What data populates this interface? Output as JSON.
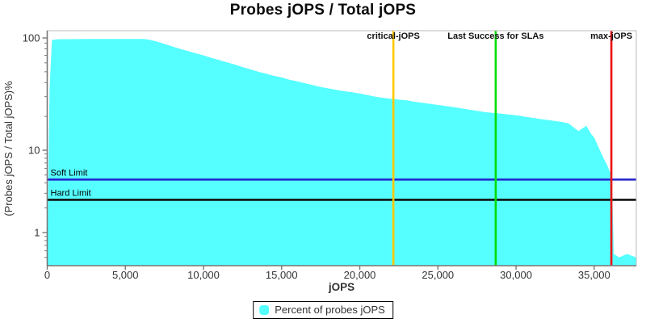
{
  "chart": {
    "title": "Probes jOPS / Total jOPS",
    "xlabel": "jOPS",
    "ylabel": "(Probes jOPS / Total jOPS)%",
    "legend": {
      "label": "Percent of probes jOPS",
      "swatch_color": "#55FFFF"
    }
  },
  "chart_data": {
    "type": "area",
    "title": "Probes jOPS / Total jOPS",
    "xlabel": "jOPS",
    "ylabel": "(Probes jOPS / Total jOPS)%",
    "series_name": "Percent of probes jOPS",
    "area_color": "#55FFFF",
    "x_axis": {
      "min": 0,
      "max": 37700,
      "major_ticks": [
        0,
        5000,
        10000,
        15000,
        20000,
        25000,
        30000,
        35000
      ]
    },
    "y_axis": {
      "scale": "log",
      "min": 0.42,
      "max": 116,
      "major_ticks": [
        100,
        10,
        1
      ],
      "minor_ticks": [
        90,
        80,
        70,
        60,
        50,
        40,
        30,
        20,
        9,
        8,
        7,
        6,
        5,
        4,
        3,
        2,
        0.9,
        0.8,
        0.7,
        0.6,
        0.5
      ]
    },
    "points": [
      [
        0,
        0.45
      ],
      [
        150,
        35
      ],
      [
        300,
        96
      ],
      [
        700,
        97.5
      ],
      [
        1500,
        97.5
      ],
      [
        2500,
        97.8
      ],
      [
        4000,
        98
      ],
      [
        5500,
        98
      ],
      [
        6200,
        97.8
      ],
      [
        6600,
        96
      ],
      [
        7000,
        93
      ],
      [
        7500,
        88.5
      ],
      [
        8000,
        84
      ],
      [
        8500,
        80
      ],
      [
        9000,
        76.5
      ],
      [
        9500,
        73
      ],
      [
        10000,
        70
      ],
      [
        10500,
        66.5
      ],
      [
        11000,
        63.5
      ],
      [
        11500,
        60.5
      ],
      [
        12000,
        58
      ],
      [
        12500,
        55
      ],
      [
        13000,
        52.5
      ],
      [
        13500,
        50
      ],
      [
        14000,
        48
      ],
      [
        14500,
        46
      ],
      [
        15000,
        44.5
      ],
      [
        15500,
        42.5
      ],
      [
        16000,
        41
      ],
      [
        16500,
        39.5
      ],
      [
        17000,
        38
      ],
      [
        17500,
        36.5
      ],
      [
        18000,
        35.5
      ],
      [
        18500,
        34.5
      ],
      [
        19000,
        33.5
      ],
      [
        19500,
        32.8
      ],
      [
        20000,
        32
      ],
      [
        20500,
        31
      ],
      [
        21000,
        30
      ],
      [
        21500,
        29.3
      ],
      [
        22000,
        28.7
      ],
      [
        22500,
        28.2
      ],
      [
        23000,
        27.8
      ],
      [
        23500,
        27
      ],
      [
        24000,
        26.5
      ],
      [
        24500,
        25.9
      ],
      [
        25000,
        25.3
      ],
      [
        25500,
        24.8
      ],
      [
        26000,
        24.2
      ],
      [
        26500,
        23.6
      ],
      [
        27000,
        23
      ],
      [
        27500,
        22.4
      ],
      [
        28000,
        21.9
      ],
      [
        28500,
        21.5
      ],
      [
        29000,
        21.2
      ],
      [
        29500,
        20.8
      ],
      [
        30000,
        20.5
      ],
      [
        30500,
        20
      ],
      [
        31000,
        19.5
      ],
      [
        31500,
        19
      ],
      [
        32000,
        18.6
      ],
      [
        32500,
        18.2
      ],
      [
        33000,
        17.8
      ],
      [
        33400,
        17.2
      ],
      [
        33800,
        15.5
      ],
      [
        34000,
        14.8
      ],
      [
        34300,
        15.8
      ],
      [
        34500,
        16.5
      ],
      [
        34800,
        14
      ],
      [
        35000,
        13
      ],
      [
        35300,
        10.5
      ],
      [
        35600,
        8
      ],
      [
        35800,
        6.8
      ],
      [
        36000,
        5.5
      ],
      [
        36100,
        5
      ],
      [
        36150,
        3.5
      ],
      [
        36250,
        0.55
      ],
      [
        36600,
        0.5
      ],
      [
        37100,
        0.55
      ],
      [
        37700,
        0.5
      ]
    ],
    "markers": [
      {
        "name": "critical-jops",
        "label": "critical-jOPS",
        "jops": 22150,
        "color": "#FFC800"
      },
      {
        "name": "last-success-for-slas",
        "label": "Last Success for SLAs",
        "jops": 28700,
        "color": "#00DD00"
      },
      {
        "name": "max-jops",
        "label": "max-jOPS",
        "jops": 36100,
        "color": "#EE1111"
      }
    ],
    "limits": [
      {
        "name": "soft-limit",
        "label": "Soft Limit",
        "value": 4.4,
        "color": "#2222CC"
      },
      {
        "name": "hard-limit",
        "label": "Hard Limit",
        "value": 2.5,
        "color": "#111111"
      }
    ]
  },
  "colors": {
    "axis_line": "#777777",
    "plot_border": "#BBBBBB",
    "tick_text": "#333333",
    "label_text": "#111111"
  }
}
